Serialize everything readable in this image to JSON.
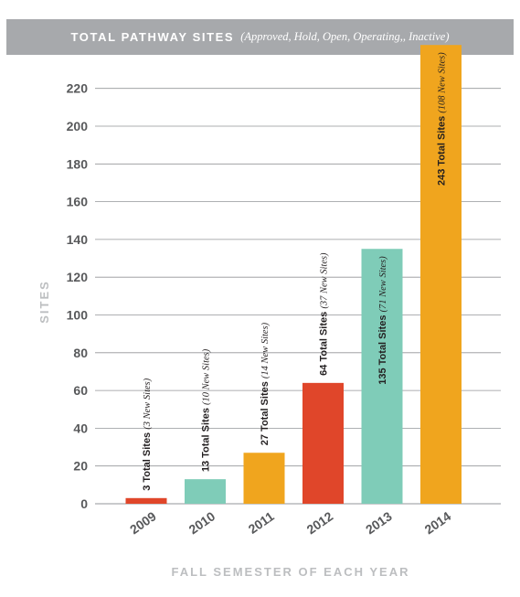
{
  "header": {
    "title": "TOTAL PATHWAY SITES",
    "subtitle": "(Approved, Hold, Open, Operating,, Inactive)"
  },
  "colors": {
    "header_bg": "#a7a9ac",
    "orange": "#f0a51e",
    "teal": "#7fccb8",
    "red": "#e0462a",
    "gridline": "#939598"
  },
  "chart_data": {
    "type": "bar",
    "title": "TOTAL PATHWAY SITES",
    "subtitle": "(Approved, Hold, Open, Operating,, Inactive)",
    "xlabel": "FALL SEMESTER OF EACH YEAR",
    "ylabel": "SITES",
    "ylim": [
      0,
      240
    ],
    "yticks": [
      0,
      20,
      40,
      60,
      80,
      100,
      120,
      140,
      160,
      180,
      200,
      220
    ],
    "grid": true,
    "categories": [
      "2009",
      "2010",
      "2011",
      "2012",
      "2013",
      "2014"
    ],
    "values": [
      3,
      13,
      27,
      64,
      135,
      243
    ],
    "bar_colors": [
      "#e0462a",
      "#7fccb8",
      "#f0a51e",
      "#e0462a",
      "#7fccb8",
      "#f0a51e"
    ],
    "labels": [
      {
        "total": "3 Total Sites",
        "new": "(3 New Sites)"
      },
      {
        "total": "13 Total Sites",
        "new": "(10 New Sites)"
      },
      {
        "total": "27 Total Sites",
        "new": "(14 New Sites)"
      },
      {
        "total": "64 Total Sites",
        "new": "(37 New Sites)"
      },
      {
        "total": "135 Total Sites",
        "new": "(71 New Sites)"
      },
      {
        "total": "243 Total Sites",
        "new": "(108 New Sites)"
      }
    ]
  }
}
